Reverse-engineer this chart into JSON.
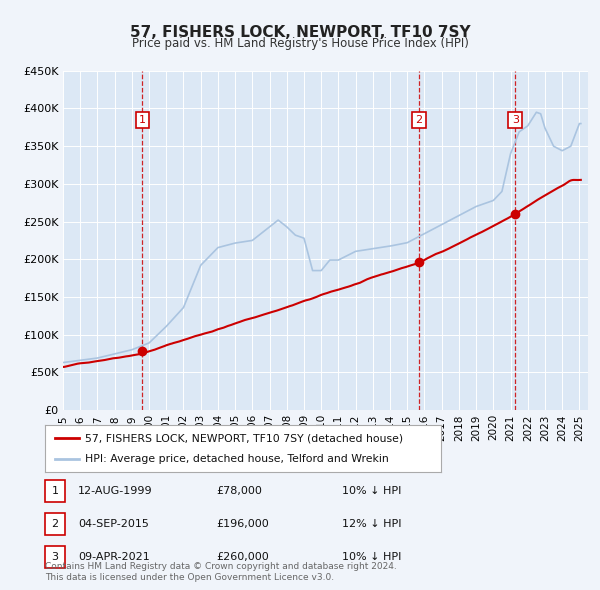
{
  "title": "57, FISHERS LOCK, NEWPORT, TF10 7SY",
  "subtitle": "Price paid vs. HM Land Registry's House Price Index (HPI)",
  "background_color": "#f0f4fa",
  "plot_bg_color": "#dce8f5",
  "hpi_color": "#aac4e0",
  "price_color": "#cc0000",
  "ylim": [
    0,
    450000
  ],
  "xlim_start": 1995.0,
  "xlim_end": 2025.5,
  "yticks": [
    0,
    50000,
    100000,
    150000,
    200000,
    250000,
    300000,
    350000,
    400000,
    450000
  ],
  "ytick_labels": [
    "£0",
    "£50K",
    "£100K",
    "£150K",
    "£200K",
    "£250K",
    "£300K",
    "£350K",
    "£400K",
    "£450K"
  ],
  "xtick_years": [
    1995,
    1996,
    1997,
    1998,
    1999,
    2000,
    2001,
    2002,
    2003,
    2004,
    2005,
    2006,
    2007,
    2008,
    2009,
    2010,
    2011,
    2012,
    2013,
    2014,
    2015,
    2016,
    2017,
    2018,
    2019,
    2020,
    2021,
    2022,
    2023,
    2024,
    2025
  ],
  "sale_dates": [
    1999.617,
    2015.674,
    2021.274
  ],
  "sale_prices": [
    78000,
    196000,
    260000
  ],
  "sale_labels": [
    "1",
    "2",
    "3"
  ],
  "legend_price_label": "57, FISHERS LOCK, NEWPORT, TF10 7SY (detached house)",
  "legend_hpi_label": "HPI: Average price, detached house, Telford and Wrekin",
  "table_rows": [
    [
      "1",
      "12-AUG-1999",
      "£78,000",
      "10% ↓ HPI"
    ],
    [
      "2",
      "04-SEP-2015",
      "£196,000",
      "12% ↓ HPI"
    ],
    [
      "3",
      "09-APR-2021",
      "£260,000",
      "10% ↓ HPI"
    ]
  ],
  "footnote": "Contains HM Land Registry data © Crown copyright and database right 2024.\nThis data is licensed under the Open Government Licence v3.0."
}
